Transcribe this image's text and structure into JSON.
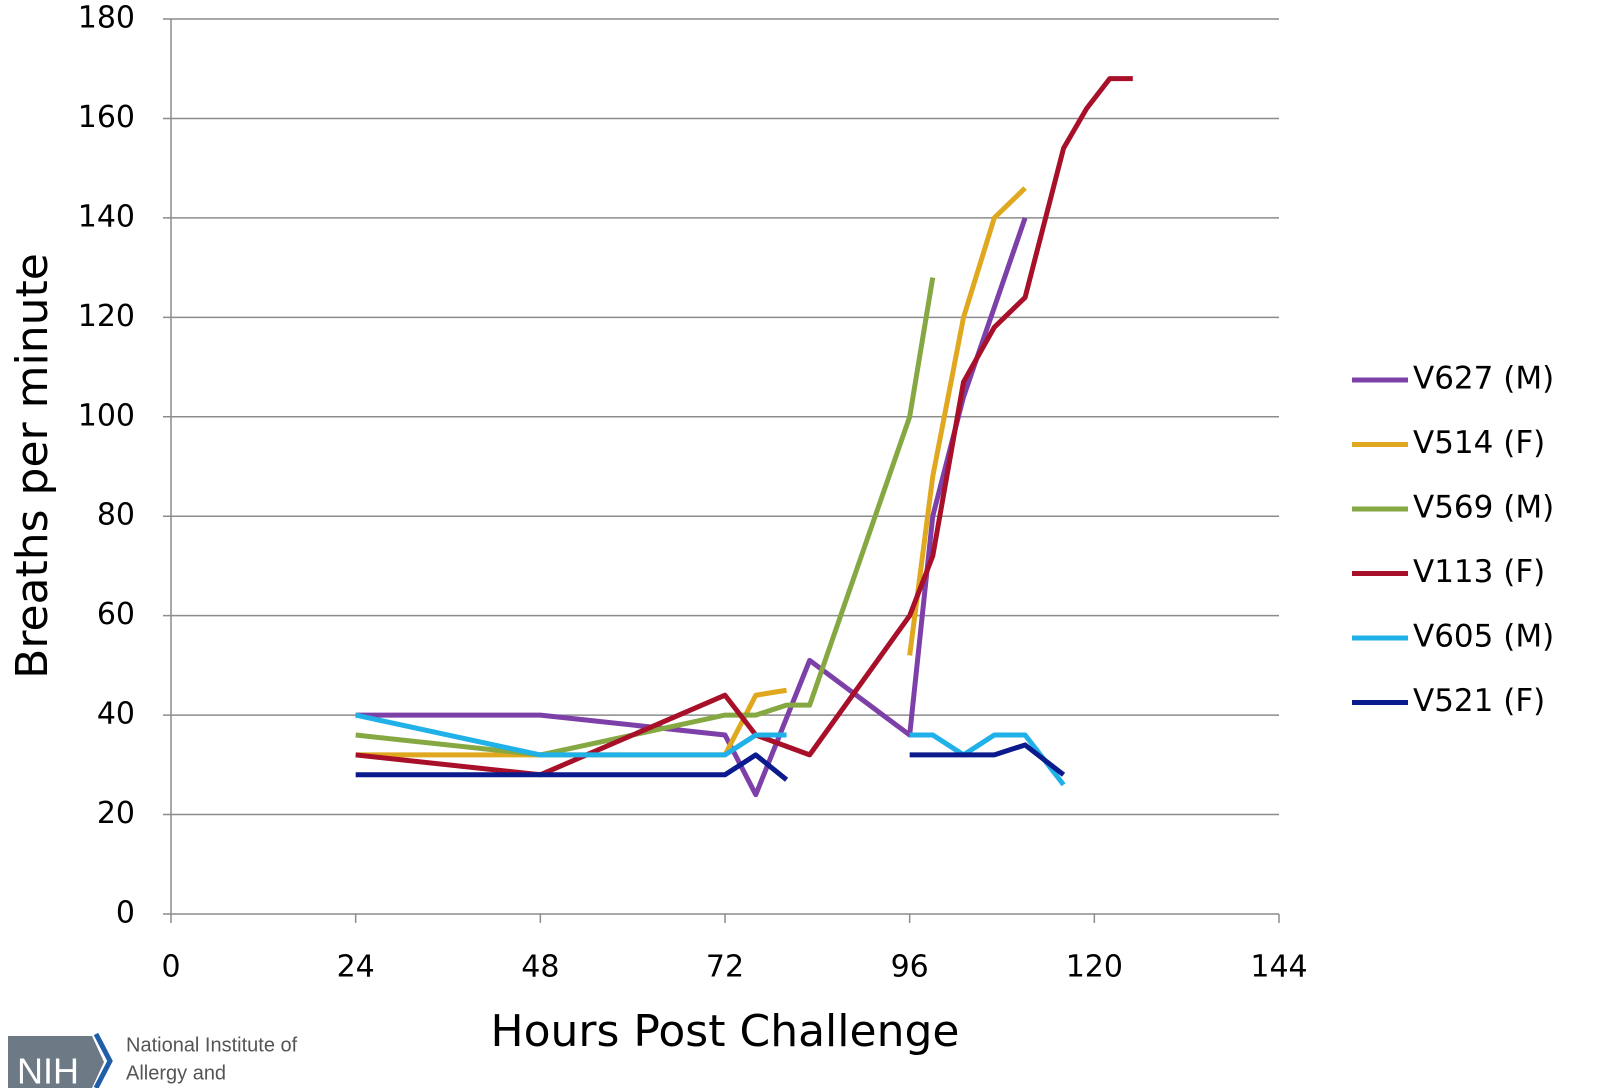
{
  "chart_data": {
    "type": "line",
    "ylabel": "Breaths per minute",
    "xlabel": "Hours Post Challenge",
    "xlim": [
      0,
      144
    ],
    "xticks": [
      0,
      24,
      48,
      72,
      96,
      120,
      144
    ],
    "ylim": [
      0,
      180
    ],
    "yticks": [
      0,
      20,
      40,
      60,
      80,
      100,
      120,
      140,
      160,
      180
    ],
    "grid": true,
    "legend": "right",
    "series": [
      {
        "name": "V627 (M)",
        "color": "#7d40a8",
        "x": [
          24,
          48,
          72,
          76,
          83,
          96,
          99,
          103,
          111
        ],
        "values": [
          40,
          40,
          36,
          24,
          51,
          36,
          80,
          104,
          140
        ]
      },
      {
        "name": "V514 (F)",
        "color": "#e0a81e",
        "x": [
          24,
          48,
          72,
          76,
          80,
          88,
          96,
          99,
          103,
          107,
          111
        ],
        "values": [
          32,
          32,
          32,
          44,
          45,
          null,
          52,
          88,
          120,
          140,
          146
        ]
      },
      {
        "name": "V569 (M)",
        "color": "#86a843",
        "x": [
          24,
          48,
          72,
          76,
          80,
          83,
          96,
          99
        ],
        "values": [
          36,
          32,
          40,
          40,
          42,
          42,
          100,
          128
        ]
      },
      {
        "name": "V113 (F)",
        "color": "#a8102a",
        "x": [
          24,
          48,
          72,
          76,
          83,
          96,
          99,
          103,
          107,
          111,
          116,
          119,
          122,
          125
        ],
        "values": [
          32,
          28,
          44,
          36,
          32,
          60,
          72,
          107,
          118,
          124,
          154,
          162,
          168,
          168
        ]
      },
      {
        "name": "V605 (M)",
        "color": "#1fb1e8",
        "x": [
          24,
          48,
          72,
          76,
          80,
          88,
          96,
          99,
          103,
          107,
          111,
          116
        ],
        "values": [
          40,
          32,
          32,
          36,
          36,
          null,
          36,
          36,
          32,
          36,
          36,
          26
        ]
      },
      {
        "name": "V521 (F)",
        "color": "#0b1a8c",
        "x": [
          24,
          48,
          72,
          76,
          80,
          88,
          96,
          99,
          103,
          107,
          111,
          116
        ],
        "values": [
          28,
          28,
          28,
          32,
          27,
          null,
          32,
          32,
          32,
          32,
          34,
          28
        ]
      }
    ]
  },
  "footer": {
    "logo": "NIH",
    "line1": "National Institute of",
    "line2": "Allergy and"
  }
}
